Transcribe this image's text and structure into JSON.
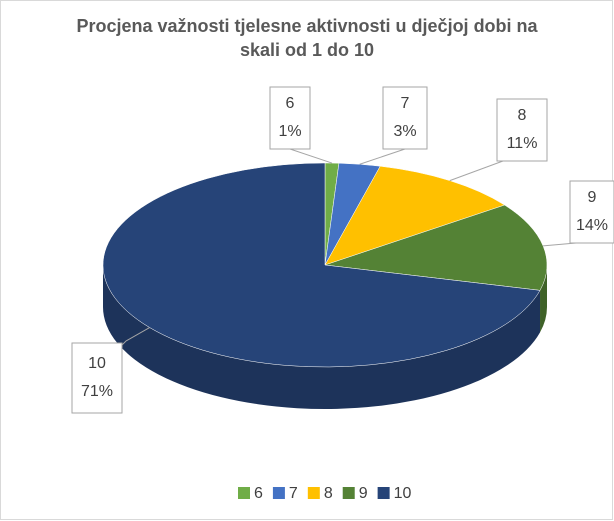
{
  "chart_data": {
    "type": "pie3d",
    "title": "Procjena važnosti tjelesne aktivnosti u dječjoj dobi na skali od 1 do 10",
    "categories": [
      "6",
      "7",
      "8",
      "9",
      "10"
    ],
    "values": [
      1,
      3,
      11,
      14,
      71
    ],
    "value_labels": [
      "1%",
      "3%",
      "11%",
      "14%",
      "71%"
    ],
    "colors": [
      "#70ad47",
      "#4472c4",
      "#ffc000",
      "#548235",
      "#264478"
    ],
    "legend": "bottom"
  }
}
